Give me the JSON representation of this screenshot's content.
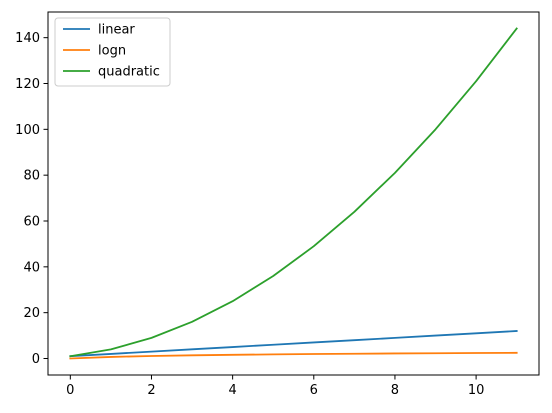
{
  "chart_data": {
    "type": "line",
    "x": [
      0,
      1,
      2,
      3,
      4,
      5,
      6,
      7,
      8,
      9,
      10,
      11
    ],
    "series": [
      {
        "name": "linear",
        "color": "#1f77b4",
        "values": [
          1,
          2,
          3,
          4,
          5,
          6,
          7,
          8,
          9,
          10,
          11,
          12
        ]
      },
      {
        "name": "logn",
        "color": "#ff7f0e",
        "values": [
          0,
          0.69,
          1.1,
          1.39,
          1.61,
          1.79,
          1.95,
          2.08,
          2.2,
          2.3,
          2.4,
          2.48
        ]
      },
      {
        "name": "quadratic",
        "color": "#2ca02c",
        "values": [
          1,
          4,
          9,
          16,
          25,
          36,
          49,
          64,
          81,
          100,
          121,
          144
        ]
      }
    ],
    "xlim": [
      -0.55,
      11.55
    ],
    "ylim": [
      -7.2,
      151.2
    ],
    "x_ticks": [
      0,
      2,
      4,
      6,
      8,
      10
    ],
    "y_ticks": [
      0,
      20,
      40,
      60,
      80,
      100,
      120,
      140
    ],
    "title": "",
    "xlabel": "",
    "ylabel": "",
    "grid": false,
    "legend_position": "upper-left"
  }
}
